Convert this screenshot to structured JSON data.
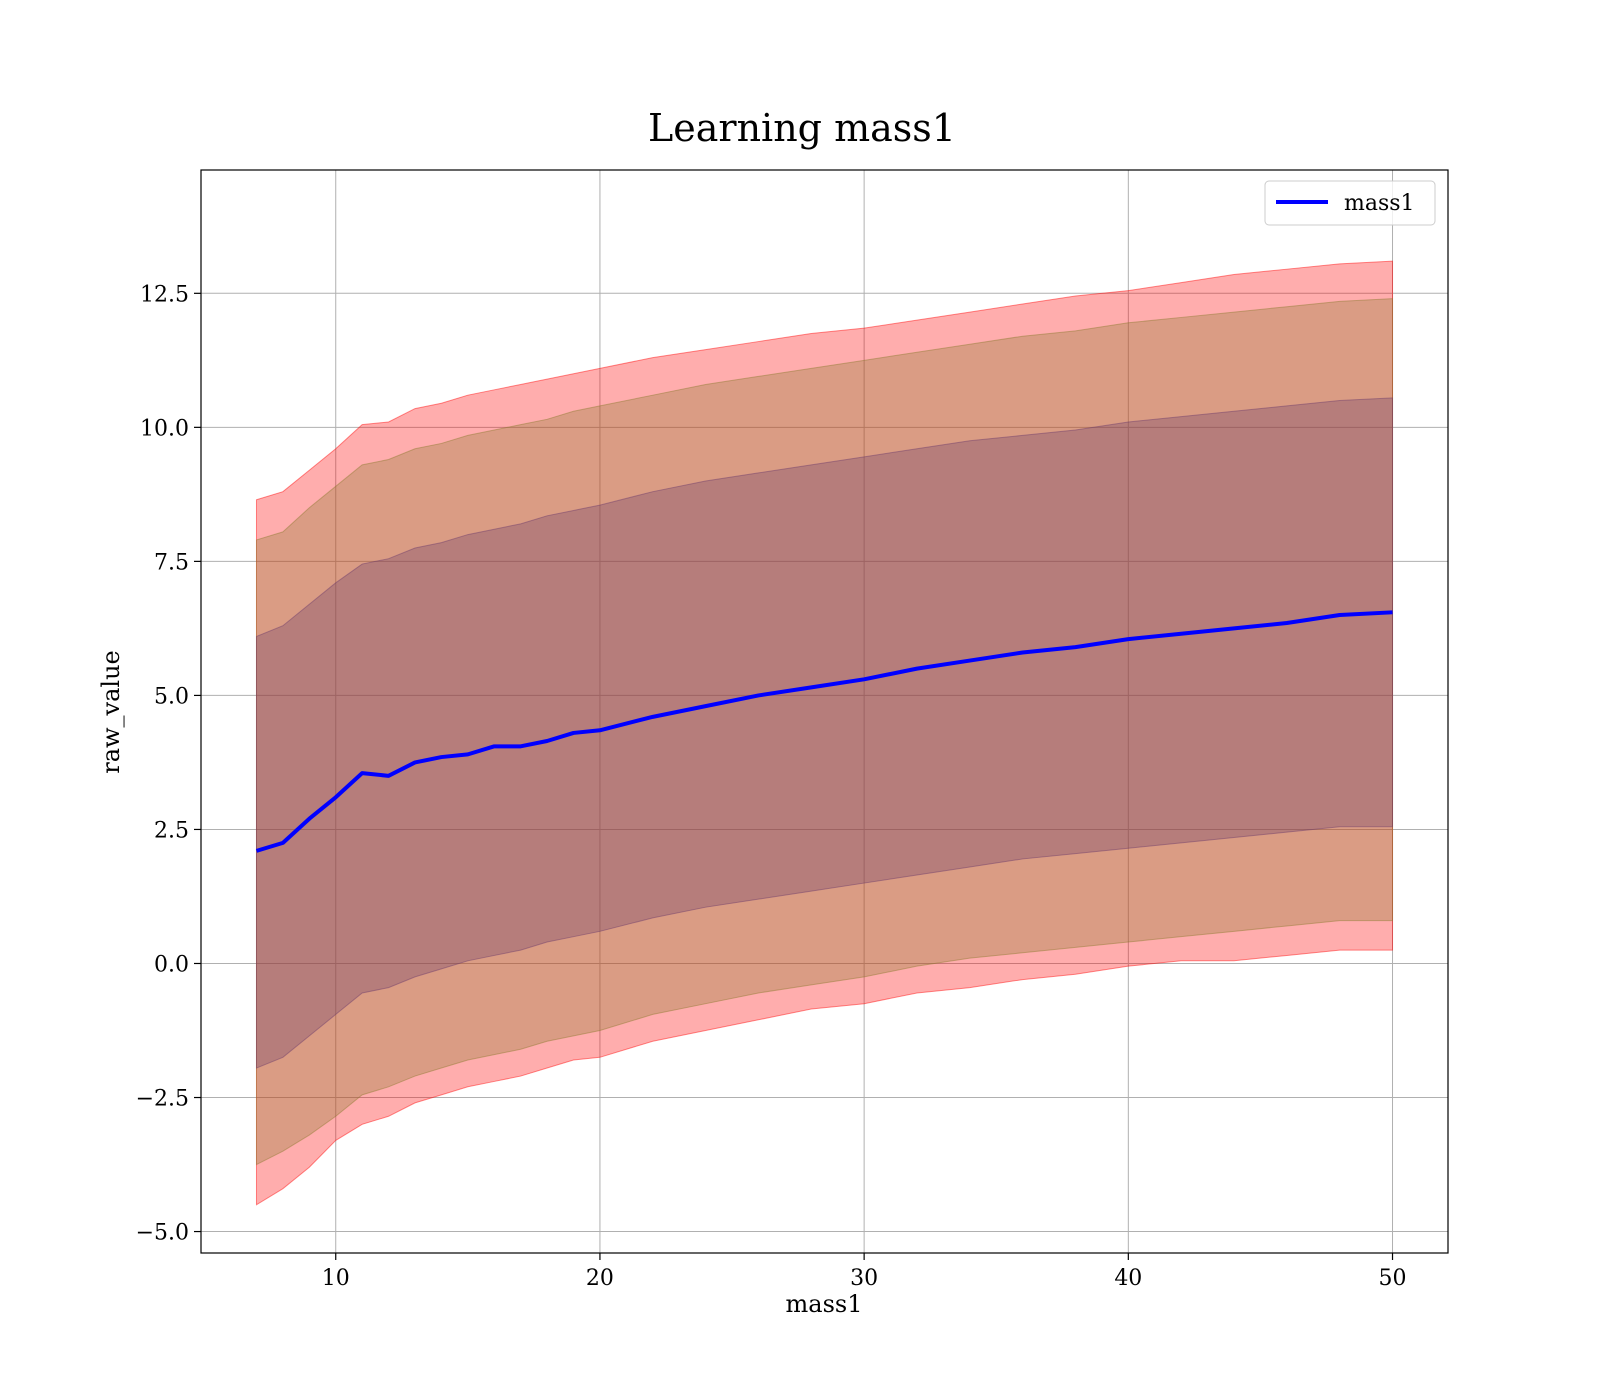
{
  "chart_data": {
    "type": "area",
    "title": "Learning mass1",
    "xlabel": "mass1",
    "ylabel": "raw_value",
    "xlim": [
      4.9,
      52.1
    ],
    "ylim": [
      -5.4,
      14.8
    ],
    "xticks": [
      10,
      20,
      30,
      40,
      50
    ],
    "xtick_labels": [
      "10",
      "20",
      "30",
      "40",
      "50"
    ],
    "yticks": [
      -5.0,
      -2.5,
      0.0,
      2.5,
      5.0,
      7.5,
      10.0,
      12.5
    ],
    "ytick_labels": [
      "−5.0",
      "−2.5",
      "0.0",
      "2.5",
      "5.0",
      "7.5",
      "10.0",
      "12.5"
    ],
    "grid": true,
    "legend": {
      "position": "top-right",
      "entries": [
        "mass1"
      ]
    },
    "colors": {
      "line": "#0000ff",
      "band_3sigma": "#ff0000",
      "band_2sigma": "#8b7a2f",
      "band_1sigma": "#6b3a6b"
    },
    "x": [
      7,
      8,
      9,
      10,
      11,
      12,
      13,
      14,
      15,
      16,
      17,
      18,
      19,
      20,
      22,
      24,
      26,
      28,
      30,
      32,
      34,
      36,
      38,
      40,
      42,
      44,
      46,
      48,
      50
    ],
    "series": [
      {
        "name": "mass1",
        "role": "mean",
        "values": [
          2.1,
          2.25,
          2.7,
          3.1,
          3.55,
          3.5,
          3.75,
          3.85,
          3.9,
          4.05,
          4.05,
          4.15,
          4.3,
          4.35,
          4.6,
          4.8,
          5.0,
          5.15,
          5.3,
          5.5,
          5.65,
          5.8,
          5.9,
          6.05,
          6.15,
          6.25,
          6.35,
          6.5,
          6.55
        ]
      },
      {
        "role": "band_3sigma",
        "lower": [
          -4.5,
          -4.2,
          -3.8,
          -3.3,
          -3.0,
          -2.85,
          -2.6,
          -2.45,
          -2.3,
          -2.2,
          -2.1,
          -1.95,
          -1.8,
          -1.75,
          -1.45,
          -1.25,
          -1.05,
          -0.85,
          -0.75,
          -0.55,
          -0.45,
          -0.3,
          -0.2,
          -0.05,
          0.05,
          0.05,
          0.15,
          0.25,
          0.25
        ],
        "upper": [
          8.65,
          8.8,
          9.2,
          9.6,
          10.05,
          10.1,
          10.35,
          10.45,
          10.6,
          10.7,
          10.8,
          10.9,
          11.0,
          11.1,
          11.3,
          11.45,
          11.6,
          11.75,
          11.85,
          12.0,
          12.15,
          12.3,
          12.45,
          12.55,
          12.7,
          12.85,
          12.95,
          13.05,
          13.1
        ]
      },
      {
        "role": "band_2sigma",
        "lower": [
          -3.75,
          -3.5,
          -3.2,
          -2.85,
          -2.45,
          -2.3,
          -2.1,
          -1.95,
          -1.8,
          -1.7,
          -1.6,
          -1.45,
          -1.35,
          -1.25,
          -0.95,
          -0.75,
          -0.55,
          -0.4,
          -0.25,
          -0.05,
          0.1,
          0.2,
          0.3,
          0.4,
          0.5,
          0.6,
          0.7,
          0.8,
          0.8
        ],
        "upper": [
          7.9,
          8.05,
          8.5,
          8.9,
          9.3,
          9.4,
          9.6,
          9.7,
          9.85,
          9.95,
          10.05,
          10.15,
          10.3,
          10.4,
          10.6,
          10.8,
          10.95,
          11.1,
          11.25,
          11.4,
          11.55,
          11.7,
          11.8,
          11.95,
          12.05,
          12.15,
          12.25,
          12.35,
          12.4
        ]
      },
      {
        "role": "band_1sigma",
        "lower": [
          -1.95,
          -1.75,
          -1.35,
          -0.95,
          -0.55,
          -0.45,
          -0.25,
          -0.1,
          0.05,
          0.15,
          0.25,
          0.4,
          0.5,
          0.6,
          0.85,
          1.05,
          1.2,
          1.35,
          1.5,
          1.65,
          1.8,
          1.95,
          2.05,
          2.15,
          2.25,
          2.35,
          2.45,
          2.55,
          2.55
        ],
        "upper": [
          6.1,
          6.3,
          6.7,
          7.1,
          7.45,
          7.55,
          7.75,
          7.85,
          8.0,
          8.1,
          8.2,
          8.35,
          8.45,
          8.55,
          8.8,
          9.0,
          9.15,
          9.3,
          9.45,
          9.6,
          9.75,
          9.85,
          9.95,
          10.1,
          10.2,
          10.3,
          10.4,
          10.5,
          10.55
        ]
      }
    ]
  }
}
